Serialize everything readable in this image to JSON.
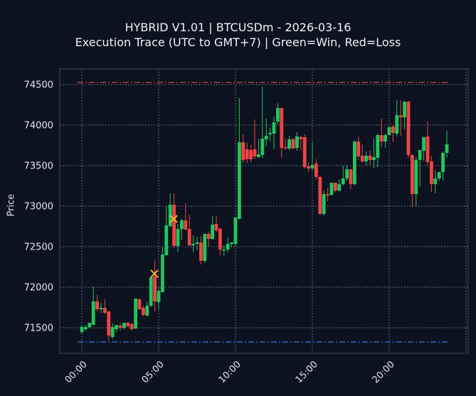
{
  "title": {
    "line1": "HYBRID V1.01 | BTCUSDm - 2026-03-16",
    "line2": "Execution Trace (UTC to GMT+7) | Green=Win, Red=Loss"
  },
  "colors": {
    "background": "#0c1220",
    "up": "#22c55e",
    "down": "#ef4444",
    "marker": "#f0b429",
    "grid": "#9aa0aa",
    "axis_frame": "#3a4252",
    "upper_line": "#d9434b",
    "lower_line": "#3b82f6"
  },
  "chart_data": {
    "type": "candlestick",
    "title": "HYBRID V1.01 | BTCUSDm - 2026-03-16 — Execution Trace (UTC to GMT+7) | Green=Win, Red=Loss",
    "xlabel": "",
    "ylabel": "Price",
    "ylim": [
      71150,
      74680
    ],
    "yticks": [
      71500,
      72000,
      72500,
      73000,
      73500,
      74000,
      74500
    ],
    "xticks": [
      "00:00",
      "05:00",
      "10:00",
      "15:00",
      "20:00"
    ],
    "xtick_hours": [
      0,
      5,
      10,
      15,
      20
    ],
    "xlim_hours": [
      -1.4,
      25.1
    ],
    "interval_minutes": 15,
    "grid": true,
    "candles": [
      {
        "h": 0.0,
        "o": 71447,
        "h_": 71535,
        "l": 71421,
        "c": 71509
      },
      {
        "h": 0.25,
        "o": 71482,
        "h_": 71535,
        "l": 71465,
        "c": 71509
      },
      {
        "h": 0.5,
        "o": 71509,
        "h_": 71553,
        "l": 71491,
        "c": 71561
      },
      {
        "h": 0.75,
        "o": 71535,
        "h_": 72009,
        "l": 71526,
        "c": 71825
      },
      {
        "h": 1.0,
        "o": 71825,
        "h_": 71904,
        "l": 71702,
        "c": 71728
      },
      {
        "h": 1.25,
        "o": 71728,
        "h_": 71807,
        "l": 71684,
        "c": 71746
      },
      {
        "h": 1.5,
        "o": 71746,
        "h_": 71851,
        "l": 71667,
        "c": 71684
      },
      {
        "h": 1.75,
        "o": 71702,
        "h_": 71702,
        "l": 71342,
        "c": 71404
      },
      {
        "h": 2.0,
        "o": 71386,
        "h_": 71553,
        "l": 71365,
        "c": 71509
      },
      {
        "h": 2.25,
        "o": 71482,
        "h_": 71535,
        "l": 71447,
        "c": 71535
      },
      {
        "h": 2.5,
        "o": 71526,
        "h_": 71561,
        "l": 71465,
        "c": 71500
      },
      {
        "h": 2.75,
        "o": 71500,
        "h_": 71561,
        "l": 71482,
        "c": 71561
      },
      {
        "h": 3.0,
        "o": 71561,
        "h_": 71570,
        "l": 71509,
        "c": 71518
      },
      {
        "h": 3.25,
        "o": 71544,
        "h_": 71561,
        "l": 71465,
        "c": 71482
      },
      {
        "h": 3.5,
        "o": 71491,
        "h_": 71860,
        "l": 71482,
        "c": 71860
      },
      {
        "h": 3.75,
        "o": 71851,
        "h_": 71860,
        "l": 71719,
        "c": 71728
      },
      {
        "h": 4.0,
        "o": 71746,
        "h_": 71772,
        "l": 71640,
        "c": 71658
      },
      {
        "h": 4.25,
        "o": 71649,
        "h_": 71825,
        "l": 71640,
        "c": 71772
      },
      {
        "h": 4.5,
        "o": 71772,
        "h_": 72132,
        "l": 71755,
        "c": 72123
      },
      {
        "h": 4.75,
        "o": 72132,
        "h_": 72335,
        "l": 71700,
        "c": 71825
      },
      {
        "h": 5.0,
        "o": 71816,
        "h_": 72000,
        "l": 71719,
        "c": 71956
      },
      {
        "h": 5.25,
        "o": 71939,
        "h_": 72500,
        "l": 71939,
        "c": 72404
      },
      {
        "h": 5.5,
        "o": 72395,
        "h_": 73000,
        "l": 72395,
        "c": 72763
      },
      {
        "h": 5.75,
        "o": 72754,
        "h_": 73158,
        "l": 72737,
        "c": 73018
      },
      {
        "h": 6.0,
        "o": 73018,
        "h_": 73158,
        "l": 72482,
        "c": 72509
      },
      {
        "h": 6.25,
        "o": 72509,
        "h_": 72781,
        "l": 72430,
        "c": 72719
      },
      {
        "h": 6.5,
        "o": 72719,
        "h_": 72842,
        "l": 72588,
        "c": 72825
      },
      {
        "h": 6.75,
        "o": 72825,
        "h_": 73035,
        "l": 72711,
        "c": 72711
      },
      {
        "h": 7.0,
        "o": 72719,
        "h_": 72895,
        "l": 72509,
        "c": 72518
      },
      {
        "h": 7.25,
        "o": 72518,
        "h_": 72640,
        "l": 72430,
        "c": 72535
      },
      {
        "h": 7.5,
        "o": 72535,
        "h_": 72620,
        "l": 72456,
        "c": 72553
      },
      {
        "h": 7.75,
        "o": 72553,
        "h_": 72632,
        "l": 72280,
        "c": 72325
      },
      {
        "h": 8.0,
        "o": 72325,
        "h_": 72658,
        "l": 72300,
        "c": 72658
      },
      {
        "h": 8.25,
        "o": 72658,
        "h_": 72684,
        "l": 72500,
        "c": 72596
      },
      {
        "h": 8.5,
        "o": 72596,
        "h_": 72877,
        "l": 72588,
        "c": 72772
      },
      {
        "h": 8.75,
        "o": 72781,
        "h_": 72877,
        "l": 72675,
        "c": 72702
      },
      {
        "h": 9.0,
        "o": 72719,
        "h_": 72737,
        "l": 72395,
        "c": 72465
      },
      {
        "h": 9.25,
        "o": 72465,
        "h_": 72518,
        "l": 72377,
        "c": 72465
      },
      {
        "h": 9.5,
        "o": 72465,
        "h_": 72614,
        "l": 72430,
        "c": 72535
      },
      {
        "h": 9.75,
        "o": 72535,
        "h_": 72553,
        "l": 72500,
        "c": 72553
      },
      {
        "h": 10.0,
        "o": 72535,
        "h_": 72860,
        "l": 72500,
        "c": 72860
      },
      {
        "h": 10.25,
        "o": 72842,
        "h_": 74333,
        "l": 72842,
        "c": 73789
      },
      {
        "h": 10.5,
        "o": 73789,
        "h_": 73886,
        "l": 73535,
        "c": 73570
      },
      {
        "h": 10.75,
        "o": 73702,
        "h_": 73780,
        "l": 73530,
        "c": 73580
      },
      {
        "h": 11.0,
        "o": 73693,
        "h_": 73760,
        "l": 73540,
        "c": 73579
      },
      {
        "h": 11.25,
        "o": 73702,
        "h_": 74070,
        "l": 73579,
        "c": 73614
      },
      {
        "h": 11.5,
        "o": 73605,
        "h_": 73833,
        "l": 73596,
        "c": 73640
      },
      {
        "h": 11.75,
        "o": 73632,
        "h_": 74474,
        "l": 73596,
        "c": 73833
      },
      {
        "h": 12.0,
        "o": 73825,
        "h_": 74079,
        "l": 73737,
        "c": 73868
      },
      {
        "h": 12.25,
        "o": 73886,
        "h_": 73974,
        "l": 73807,
        "c": 73904
      },
      {
        "h": 12.5,
        "o": 73895,
        "h_": 74105,
        "l": 73702,
        "c": 74035
      },
      {
        "h": 12.75,
        "o": 74044,
        "h_": 74272,
        "l": 74009,
        "c": 74211
      },
      {
        "h": 13.0,
        "o": 74211,
        "h_": 74211,
        "l": 73596,
        "c": 73719
      },
      {
        "h": 13.25,
        "o": 73728,
        "h_": 73833,
        "l": 73693,
        "c": 73719
      },
      {
        "h": 13.5,
        "o": 73711,
        "h_": 73868,
        "l": 73693,
        "c": 73825
      },
      {
        "h": 13.75,
        "o": 73825,
        "h_": 73842,
        "l": 73719,
        "c": 73711
      },
      {
        "h": 14.0,
        "o": 73719,
        "h_": 73912,
        "l": 73684,
        "c": 73860
      },
      {
        "h": 14.25,
        "o": 73851,
        "h_": 73868,
        "l": 73693,
        "c": 73825
      },
      {
        "h": 14.5,
        "o": 73851,
        "h_": 73886,
        "l": 73465,
        "c": 73482
      },
      {
        "h": 14.75,
        "o": 73491,
        "h_": 73535,
        "l": 73421,
        "c": 73465
      },
      {
        "h": 15.0,
        "o": 73465,
        "h_": 73789,
        "l": 73439,
        "c": 73509
      },
      {
        "h": 15.25,
        "o": 73526,
        "h_": 73579,
        "l": 73333,
        "c": 73360
      },
      {
        "h": 15.5,
        "o": 73360,
        "h_": 73377,
        "l": 72895,
        "c": 72904
      },
      {
        "h": 15.75,
        "o": 72904,
        "h_": 73193,
        "l": 72886,
        "c": 73149
      },
      {
        "h": 16.0,
        "o": 73149,
        "h_": 73228,
        "l": 73061,
        "c": 73132
      },
      {
        "h": 16.25,
        "o": 73140,
        "h_": 73289,
        "l": 73130,
        "c": 73289
      },
      {
        "h": 16.5,
        "o": 73289,
        "h_": 73289,
        "l": 73175,
        "c": 73193
      },
      {
        "h": 16.75,
        "o": 73193,
        "h_": 73333,
        "l": 73184,
        "c": 73272
      },
      {
        "h": 17.0,
        "o": 73272,
        "h_": 73500,
        "l": 73254,
        "c": 73342
      },
      {
        "h": 17.25,
        "o": 73342,
        "h_": 73509,
        "l": 73316,
        "c": 73456
      },
      {
        "h": 17.5,
        "o": 73456,
        "h_": 73456,
        "l": 73211,
        "c": 73272
      },
      {
        "h": 17.75,
        "o": 73272,
        "h_": 73816,
        "l": 73254,
        "c": 73798
      },
      {
        "h": 18.0,
        "o": 73798,
        "h_": 73860,
        "l": 73570,
        "c": 73614
      },
      {
        "h": 18.25,
        "o": 73623,
        "h_": 73763,
        "l": 73535,
        "c": 73553
      },
      {
        "h": 18.5,
        "o": 73553,
        "h_": 73675,
        "l": 73500,
        "c": 73623
      },
      {
        "h": 18.75,
        "o": 73623,
        "h_": 73684,
        "l": 73509,
        "c": 73570
      },
      {
        "h": 19.0,
        "o": 73570,
        "h_": 73833,
        "l": 73465,
        "c": 73605
      },
      {
        "h": 19.25,
        "o": 73596,
        "h_": 73895,
        "l": 73482,
        "c": 73877
      },
      {
        "h": 19.5,
        "o": 73877,
        "h_": 74079,
        "l": 73728,
        "c": 73798
      },
      {
        "h": 19.75,
        "o": 73798,
        "h_": 73895,
        "l": 73719,
        "c": 73877
      },
      {
        "h": 20.0,
        "o": 73877,
        "h_": 73982,
        "l": 73877,
        "c": 73974
      },
      {
        "h": 20.25,
        "o": 73982,
        "h_": 74000,
        "l": 73789,
        "c": 73904
      },
      {
        "h": 20.5,
        "o": 73895,
        "h_": 74307,
        "l": 73860,
        "c": 74123
      },
      {
        "h": 20.75,
        "o": 74123,
        "h_": 74307,
        "l": 73868,
        "c": 74096
      },
      {
        "h": 21.0,
        "o": 74096,
        "h_": 74298,
        "l": 73947,
        "c": 74289
      },
      {
        "h": 21.25,
        "o": 74289,
        "h_": 74298,
        "l": 73605,
        "c": 73632
      },
      {
        "h": 21.5,
        "o": 73632,
        "h_": 73640,
        "l": 72990,
        "c": 73149
      },
      {
        "h": 21.75,
        "o": 73149,
        "h_": 73605,
        "l": 73000,
        "c": 73570
      },
      {
        "h": 22.0,
        "o": 73570,
        "h_": 73684,
        "l": 73237,
        "c": 73693
      },
      {
        "h": 22.25,
        "o": 73684,
        "h_": 73842,
        "l": 73561,
        "c": 73851
      },
      {
        "h": 22.5,
        "o": 73860,
        "h_": 74044,
        "l": 73500,
        "c": 73544
      },
      {
        "h": 22.75,
        "o": 73553,
        "h_": 73623,
        "l": 73175,
        "c": 73272
      },
      {
        "h": 23.0,
        "o": 73272,
        "h_": 73447,
        "l": 73158,
        "c": 73342
      },
      {
        "h": 23.25,
        "o": 73342,
        "h_": 73409,
        "l": 73316,
        "c": 73421
      },
      {
        "h": 23.5,
        "o": 73421,
        "h_": 73675,
        "l": 73316,
        "c": 73658
      },
      {
        "h": 23.75,
        "o": 73658,
        "h_": 73930,
        "l": 73596,
        "c": 73763
      }
    ],
    "markers": [
      {
        "label": "x-marker-1",
        "hour": 4.75,
        "price": 72167
      },
      {
        "label": "x-marker-2",
        "hour": 6.0,
        "price": 72842
      }
    ],
    "horizontal_lines": [
      {
        "label": "upper-level",
        "price": 74526,
        "color": "#d9434b",
        "style": "dashdot",
        "from_hour": -0.28,
        "to_hour": 23.83
      },
      {
        "label": "lower-level",
        "price": 71325,
        "color": "#3b82f6",
        "style": "dashdot",
        "from_hour": -0.28,
        "to_hour": 23.93
      }
    ]
  }
}
